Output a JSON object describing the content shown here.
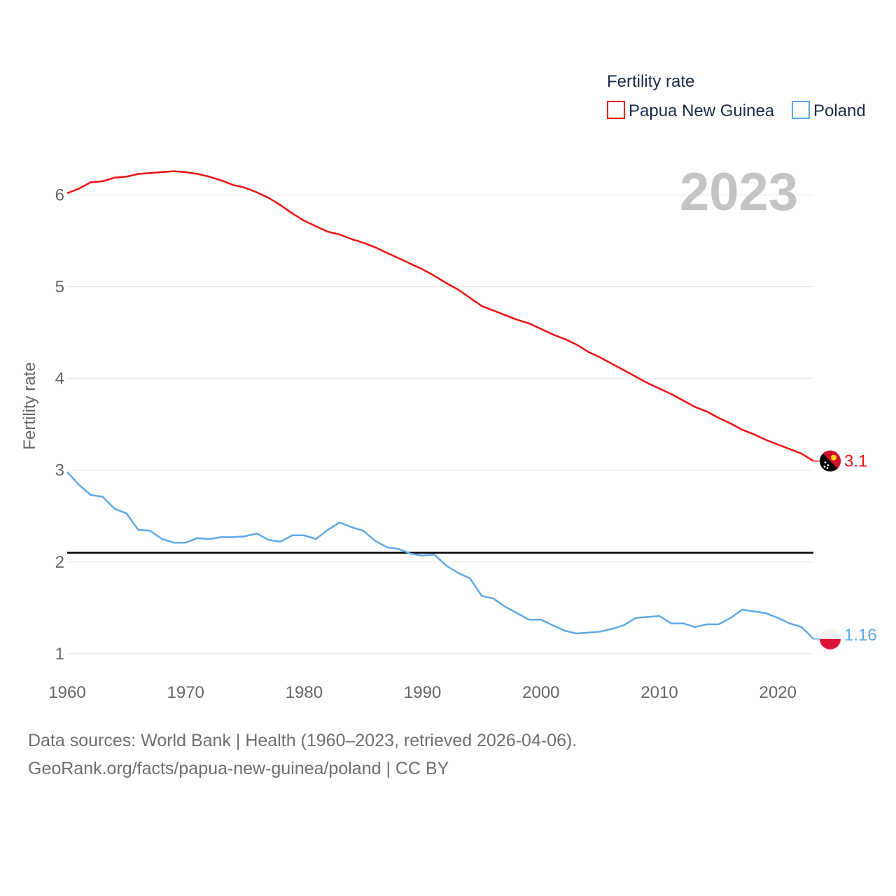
{
  "legend": {
    "title": "Fertility rate",
    "items": [
      {
        "label": "Papua New Guinea",
        "color": "#ee1111"
      },
      {
        "label": "Poland",
        "color": "#5ea8e6"
      }
    ]
  },
  "year_label": "2023",
  "end_labels": {
    "png": "3.1",
    "poland": "1.16"
  },
  "source": {
    "line1": "Data sources: World Bank | Health (1960–2023, retrieved 2026-04-06).",
    "line2": "GeoRank.org/facts/papua-new-guinea/poland | CC BY"
  },
  "chart_data": {
    "type": "line",
    "title": "",
    "xlabel": "",
    "ylabel": "Fertility rate",
    "xlim": [
      1960,
      2023
    ],
    "ylim": [
      0.8,
      6.6
    ],
    "x_ticks": [
      1960,
      1970,
      1980,
      1990,
      2000,
      2010,
      2020
    ],
    "y_ticks": [
      1,
      2,
      3,
      4,
      5,
      6
    ],
    "reference_line": {
      "y": 2.1,
      "color": "#000000"
    },
    "x": [
      1960,
      1961,
      1962,
      1963,
      1964,
      1965,
      1966,
      1967,
      1968,
      1969,
      1970,
      1971,
      1972,
      1973,
      1974,
      1975,
      1976,
      1977,
      1978,
      1979,
      1980,
      1981,
      1982,
      1983,
      1984,
      1985,
      1986,
      1987,
      1988,
      1989,
      1990,
      1991,
      1992,
      1993,
      1994,
      1995,
      1996,
      1997,
      1998,
      1999,
      2000,
      2001,
      2002,
      2003,
      2004,
      2005,
      2006,
      2007,
      2008,
      2009,
      2010,
      2011,
      2012,
      2013,
      2014,
      2015,
      2016,
      2017,
      2018,
      2019,
      2020,
      2021,
      2022,
      2023
    ],
    "series": [
      {
        "name": "Papua New Guinea",
        "color": "#ee1111",
        "values": [
          6.02,
          6.07,
          6.14,
          6.15,
          6.19,
          6.2,
          6.23,
          6.24,
          6.25,
          6.26,
          6.25,
          6.23,
          6.2,
          6.16,
          6.11,
          6.08,
          6.03,
          5.97,
          5.89,
          5.8,
          5.72,
          5.66,
          5.6,
          5.57,
          5.52,
          5.48,
          5.43,
          5.37,
          5.31,
          5.25,
          5.19,
          5.12,
          5.04,
          4.97,
          4.88,
          4.79,
          4.74,
          4.69,
          4.64,
          4.6,
          4.54,
          4.48,
          4.43,
          4.37,
          4.29,
          4.23,
          4.16,
          4.09,
          4.02,
          3.95,
          3.89,
          3.83,
          3.76,
          3.69,
          3.64,
          3.57,
          3.51,
          3.44,
          3.39,
          3.33,
          3.28,
          3.23,
          3.18,
          3.1
        ]
      },
      {
        "name": "Poland",
        "color": "#5ea8e6",
        "values": [
          2.98,
          2.84,
          2.73,
          2.71,
          2.58,
          2.53,
          2.35,
          2.34,
          2.25,
          2.21,
          2.21,
          2.26,
          2.25,
          2.27,
          2.27,
          2.28,
          2.31,
          2.24,
          2.22,
          2.29,
          2.29,
          2.25,
          2.35,
          2.43,
          2.38,
          2.34,
          2.23,
          2.16,
          2.14,
          2.09,
          2.07,
          2.08,
          1.96,
          1.88,
          1.82,
          1.63,
          1.6,
          1.51,
          1.44,
          1.37,
          1.37,
          1.31,
          1.25,
          1.22,
          1.23,
          1.24,
          1.27,
          1.31,
          1.39,
          1.4,
          1.41,
          1.33,
          1.33,
          1.29,
          1.32,
          1.32,
          1.39,
          1.48,
          1.46,
          1.44,
          1.39,
          1.33,
          1.29,
          1.16
        ]
      }
    ]
  }
}
